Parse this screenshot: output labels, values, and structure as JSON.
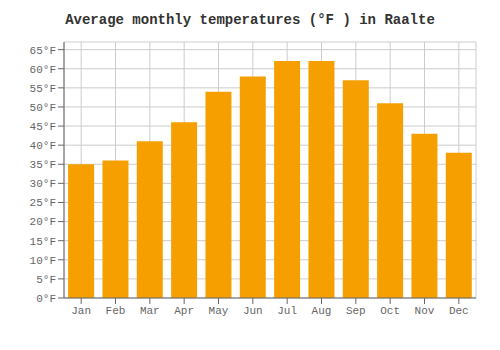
{
  "chart_data": {
    "type": "bar",
    "title": "Average monthly temperatures (°F ) in Raalte",
    "categories": [
      "Jan",
      "Feb",
      "Mar",
      "Apr",
      "May",
      "Jun",
      "Jul",
      "Aug",
      "Sep",
      "Oct",
      "Nov",
      "Dec"
    ],
    "values": [
      35,
      36,
      41,
      46,
      54,
      58,
      62,
      62,
      57,
      51,
      43,
      38
    ],
    "color": "#F5A000",
    "ylim": [
      0,
      67
    ],
    "yticks": [
      {
        "value": 0,
        "label": "0°F"
      },
      {
        "value": 5,
        "label": "5°F"
      },
      {
        "value": 10,
        "label": "10°F"
      },
      {
        "value": 15,
        "label": "15°F"
      },
      {
        "value": 20,
        "label": "20°F"
      },
      {
        "value": 25,
        "label": "25°F"
      },
      {
        "value": 30,
        "label": "30°F"
      },
      {
        "value": 35,
        "label": "35°F"
      },
      {
        "value": 40,
        "label": "40°F"
      },
      {
        "value": 45,
        "label": "45°F"
      },
      {
        "value": 50,
        "label": "50°F"
      },
      {
        "value": 55,
        "label": "55°F"
      },
      {
        "value": 60,
        "label": "60°F"
      },
      {
        "value": 65,
        "label": "65°F"
      }
    ],
    "grid": true
  }
}
